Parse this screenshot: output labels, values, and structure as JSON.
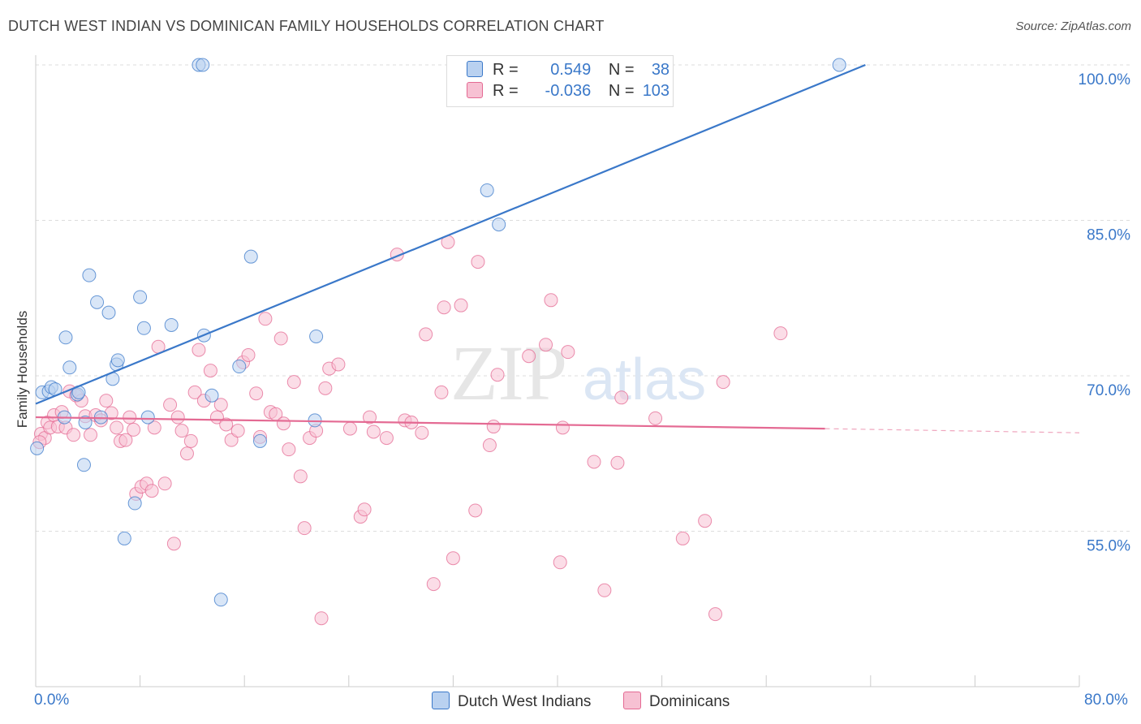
{
  "title": "DUTCH WEST INDIAN VS DOMINICAN FAMILY HOUSEHOLDS CORRELATION CHART",
  "source": "Source: ZipAtlas.com",
  "watermark": {
    "zip": "ZIP",
    "atlas": "atlas"
  },
  "colors": {
    "blue": "#3a78c9",
    "blue_fill": "#b9d1f0",
    "pink": "#e46a93",
    "pink_fill": "#f7c1d3",
    "grid": "#dddddd"
  },
  "legend": {
    "rows": [
      {
        "r_label": "R =",
        "r_value": "0.549",
        "n_label": "N =",
        "n_value": "38"
      },
      {
        "r_label": "R =",
        "r_value": "-0.036",
        "n_label": "N =",
        "n_value": "103"
      }
    ]
  },
  "chart_data": {
    "type": "scatter",
    "xlabel": "",
    "ylabel": "Family Households",
    "xlim": [
      0,
      80
    ],
    "ylim": [
      40,
      100
    ],
    "x_tick_labels": [
      "0.0%",
      "80.0%"
    ],
    "y_ticks": [
      55,
      70,
      85,
      100
    ],
    "y_tick_labels": [
      "55.0%",
      "70.0%",
      "85.0%",
      "100.0%"
    ],
    "grid": true,
    "legend_position": "top-center",
    "series": [
      {
        "name": "Dutch West Indians",
        "color": "#3a78c9",
        "fill": "#b9d1f0",
        "trend": {
          "x0": 0,
          "y0": 67.3,
          "x1": 63.6,
          "y1": 100.0
        },
        "points": [
          [
            0.1,
            63.0
          ],
          [
            0.5,
            68.4
          ],
          [
            1.0,
            68.5
          ],
          [
            1.2,
            68.9
          ],
          [
            1.5,
            68.7
          ],
          [
            2.2,
            66.0
          ],
          [
            2.3,
            73.7
          ],
          [
            2.6,
            70.8
          ],
          [
            3.2,
            68.2
          ],
          [
            3.3,
            68.4
          ],
          [
            3.7,
            61.4
          ],
          [
            3.8,
            65.5
          ],
          [
            4.1,
            79.7
          ],
          [
            4.7,
            77.1
          ],
          [
            5.0,
            66.0
          ],
          [
            5.6,
            76.1
          ],
          [
            5.9,
            69.7
          ],
          [
            6.2,
            71.1
          ],
          [
            6.3,
            71.5
          ],
          [
            7.6,
            57.7
          ],
          [
            6.8,
            54.3
          ],
          [
            8.0,
            77.6
          ],
          [
            8.3,
            74.6
          ],
          [
            8.6,
            66.0
          ],
          [
            10.4,
            74.9
          ],
          [
            12.5,
            100.0
          ],
          [
            12.8,
            100.0
          ],
          [
            12.9,
            73.9
          ],
          [
            13.5,
            68.1
          ],
          [
            14.2,
            48.4
          ],
          [
            15.6,
            70.9
          ],
          [
            16.5,
            81.5
          ],
          [
            17.2,
            63.7
          ],
          [
            21.5,
            73.8
          ],
          [
            34.6,
            87.9
          ],
          [
            35.5,
            84.6
          ],
          [
            61.6,
            100.0
          ],
          [
            21.4,
            65.7
          ]
        ]
      },
      {
        "name": "Dominicans",
        "color": "#e46a93",
        "fill": "#f7c1d3",
        "trend": {
          "x0": 0,
          "y0": 66.0,
          "x1": 60.5,
          "y1": 64.9,
          "dash_to_x": 80,
          "dash_to_y": 64.5
        },
        "points": [
          [
            0.4,
            64.4
          ],
          [
            0.7,
            64.0
          ],
          [
            0.9,
            65.5
          ],
          [
            1.1,
            65.0
          ],
          [
            1.4,
            66.2
          ],
          [
            1.7,
            65.1
          ],
          [
            2.0,
            66.5
          ],
          [
            2.3,
            65.0
          ],
          [
            2.6,
            68.5
          ],
          [
            2.9,
            64.3
          ],
          [
            3.1,
            68.1
          ],
          [
            3.5,
            67.6
          ],
          [
            3.8,
            66.1
          ],
          [
            4.2,
            64.3
          ],
          [
            4.6,
            66.2
          ],
          [
            5.0,
            65.7
          ],
          [
            5.4,
            67.6
          ],
          [
            5.8,
            66.4
          ],
          [
            6.2,
            65.0
          ],
          [
            6.5,
            63.7
          ],
          [
            6.9,
            63.8
          ],
          [
            7.2,
            66.0
          ],
          [
            7.5,
            64.8
          ],
          [
            7.7,
            58.6
          ],
          [
            8.1,
            59.3
          ],
          [
            8.5,
            59.6
          ],
          [
            8.9,
            58.9
          ],
          [
            9.4,
            72.8
          ],
          [
            9.9,
            59.6
          ],
          [
            10.3,
            67.2
          ],
          [
            10.6,
            53.8
          ],
          [
            10.9,
            66.0
          ],
          [
            11.2,
            64.7
          ],
          [
            11.6,
            62.5
          ],
          [
            11.9,
            63.7
          ],
          [
            12.2,
            68.4
          ],
          [
            12.5,
            72.5
          ],
          [
            12.9,
            67.6
          ],
          [
            13.4,
            70.5
          ],
          [
            13.9,
            66.0
          ],
          [
            14.2,
            67.2
          ],
          [
            14.6,
            65.3
          ],
          [
            15.0,
            63.8
          ],
          [
            15.5,
            64.7
          ],
          [
            15.9,
            71.3
          ],
          [
            16.3,
            72.0
          ],
          [
            16.9,
            68.3
          ],
          [
            17.2,
            64.1
          ],
          [
            17.6,
            75.5
          ],
          [
            18.0,
            66.5
          ],
          [
            18.4,
            66.3
          ],
          [
            18.8,
            73.6
          ],
          [
            19.0,
            65.4
          ],
          [
            19.4,
            62.9
          ],
          [
            19.8,
            69.4
          ],
          [
            20.3,
            60.3
          ],
          [
            20.6,
            55.3
          ],
          [
            21.0,
            64.0
          ],
          [
            21.5,
            64.7
          ],
          [
            21.9,
            46.6
          ],
          [
            22.2,
            68.8
          ],
          [
            22.5,
            70.7
          ],
          [
            23.2,
            71.1
          ],
          [
            24.1,
            64.9
          ],
          [
            24.9,
            56.4
          ],
          [
            25.2,
            57.1
          ],
          [
            25.9,
            64.6
          ],
          [
            26.9,
            64.0
          ],
          [
            27.7,
            81.7
          ],
          [
            28.3,
            65.7
          ],
          [
            28.8,
            65.5
          ],
          [
            29.6,
            64.5
          ],
          [
            29.9,
            74.0
          ],
          [
            30.5,
            49.9
          ],
          [
            31.1,
            68.4
          ],
          [
            31.3,
            76.6
          ],
          [
            31.6,
            82.9
          ],
          [
            32.0,
            52.4
          ],
          [
            32.6,
            76.8
          ],
          [
            33.7,
            57.0
          ],
          [
            33.9,
            81.0
          ],
          [
            34.8,
            63.3
          ],
          [
            35.1,
            65.1
          ],
          [
            35.4,
            70.1
          ],
          [
            37.8,
            71.9
          ],
          [
            39.1,
            73.0
          ],
          [
            39.5,
            77.3
          ],
          [
            40.2,
            52.0
          ],
          [
            40.4,
            65.0
          ],
          [
            40.8,
            72.3
          ],
          [
            42.8,
            61.7
          ],
          [
            43.6,
            49.3
          ],
          [
            44.6,
            61.6
          ],
          [
            44.9,
            67.9
          ],
          [
            47.5,
            65.9
          ],
          [
            49.6,
            54.3
          ],
          [
            51.3,
            56.0
          ],
          [
            52.1,
            47.0
          ],
          [
            52.7,
            69.4
          ],
          [
            57.1,
            74.1
          ],
          [
            0.3,
            63.6
          ],
          [
            9.1,
            65.0
          ],
          [
            25.6,
            66.0
          ]
        ]
      }
    ]
  },
  "bottom_legend": [
    "Dutch West Indians",
    "Dominicans"
  ]
}
